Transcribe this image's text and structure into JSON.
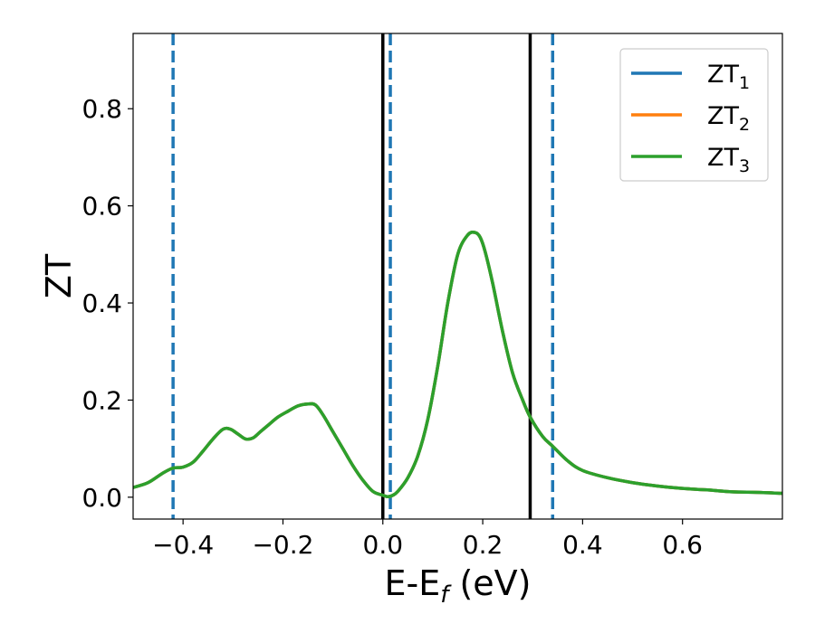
{
  "chart_data": {
    "type": "line",
    "xlabel": "E-E",
    "xlabel_sub": "f",
    "xlabel_unit": " (eV)",
    "ylabel": "ZT",
    "xlim": [
      -0.5,
      0.8
    ],
    "ylim": [
      -0.045,
      0.955
    ],
    "xticks": [
      -0.4,
      -0.2,
      0.0,
      0.2,
      0.4,
      0.6
    ],
    "xtick_labels": [
      "−0.4",
      "−0.2",
      "0.0",
      "0.2",
      "0.4",
      "0.6"
    ],
    "yticks": [
      0.0,
      0.2,
      0.4,
      0.6,
      0.8
    ],
    "ytick_labels": [
      "0.0",
      "0.2",
      "0.4",
      "0.6",
      "0.8"
    ],
    "grid": false,
    "legend_position": "top-right",
    "series": [
      {
        "name": "ZT",
        "sub": "1",
        "color": "#1f77b4"
      },
      {
        "name": "ZT",
        "sub": "2",
        "color": "#ff7f0e"
      },
      {
        "name": "ZT",
        "sub": "3",
        "color": "#2ca02c"
      }
    ],
    "curve": {
      "x": [
        -0.5,
        -0.47,
        -0.44,
        -0.42,
        -0.4,
        -0.38,
        -0.36,
        -0.34,
        -0.32,
        -0.305,
        -0.29,
        -0.275,
        -0.26,
        -0.245,
        -0.23,
        -0.21,
        -0.19,
        -0.17,
        -0.15,
        -0.135,
        -0.12,
        -0.1,
        -0.08,
        -0.06,
        -0.04,
        -0.02,
        0.0,
        0.01,
        0.02,
        0.03,
        0.05,
        0.07,
        0.09,
        0.11,
        0.13,
        0.15,
        0.17,
        0.185,
        0.195,
        0.205,
        0.22,
        0.24,
        0.26,
        0.28,
        0.295,
        0.32,
        0.34,
        0.37,
        0.4,
        0.45,
        0.5,
        0.55,
        0.6,
        0.65,
        0.7,
        0.75,
        0.8
      ],
      "y": [
        0.02,
        0.03,
        0.05,
        0.06,
        0.062,
        0.072,
        0.095,
        0.12,
        0.14,
        0.14,
        0.13,
        0.12,
        0.122,
        0.135,
        0.148,
        0.165,
        0.177,
        0.188,
        0.192,
        0.19,
        0.17,
        0.135,
        0.1,
        0.065,
        0.035,
        0.012,
        0.004,
        0.001,
        0.004,
        0.012,
        0.04,
        0.085,
        0.16,
        0.27,
        0.4,
        0.5,
        0.54,
        0.545,
        0.535,
        0.505,
        0.44,
        0.34,
        0.255,
        0.2,
        0.165,
        0.125,
        0.105,
        0.075,
        0.055,
        0.04,
        0.03,
        0.023,
        0.018,
        0.015,
        0.011,
        0.01,
        0.008
      ]
    },
    "vlines_solid": [
      0.0,
      0.295
    ],
    "vlines_dashed": [
      -0.42,
      0.015,
      0.34
    ],
    "solid_color": "#000000",
    "dashed_color": "#1f77b4"
  }
}
